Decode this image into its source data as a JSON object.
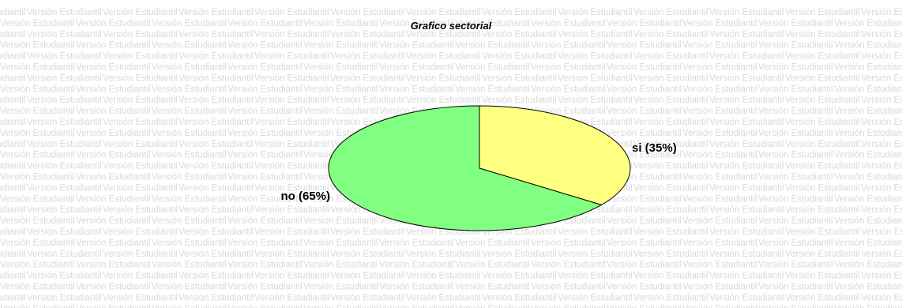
{
  "watermark": {
    "text": "Versión Estudiantil"
  },
  "chart_data": {
    "type": "pie",
    "title": "Grafico sectorial",
    "slices": [
      {
        "label": "si (35%)",
        "value": 35,
        "color": "#ffff80"
      },
      {
        "label": "no (65%)",
        "value": 65,
        "color": "#80ff80"
      }
    ],
    "start_angle_deg": 0,
    "direction": "clockwise",
    "edge_color": "#000000",
    "legend": "none"
  }
}
